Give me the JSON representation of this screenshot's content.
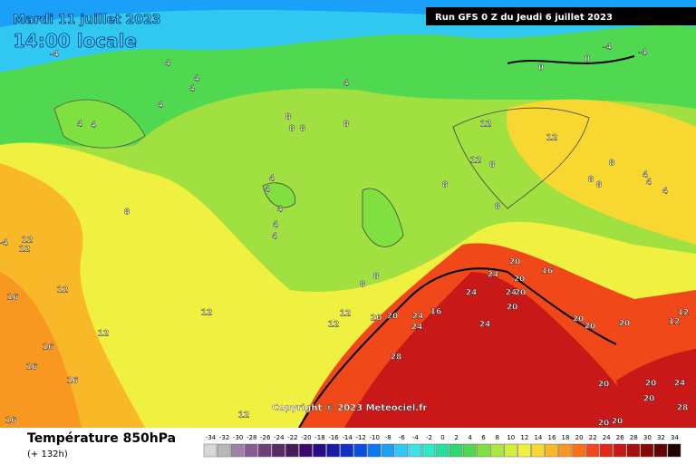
{
  "header": {
    "date": "Mardi 11 juillet 2023",
    "time": "14:00 locale",
    "run": "Run GFS 0 Z du Jeudi 6 juillet 2023"
  },
  "footer": {
    "title": "Température 850hPa",
    "lead": "(+ 132h)"
  },
  "copyright": "Copyright © 2023 Meteociel.fr",
  "legend": {
    "values": [
      -34,
      -32,
      -30,
      -28,
      -26,
      -24,
      -22,
      -20,
      -18,
      -16,
      -14,
      -12,
      -10,
      -8,
      -6,
      -4,
      -2,
      0,
      2,
      4,
      6,
      8,
      10,
      12,
      14,
      16,
      18,
      20,
      22,
      24,
      26,
      28,
      30,
      32,
      34
    ],
    "colors": [
      "#d8d8d8",
      "#b8b8b8",
      "#a080a8",
      "#8a5a96",
      "#70407e",
      "#5a2a68",
      "#4a1a58",
      "#3a0a6a",
      "#2a0a88",
      "#1a1aa8",
      "#1030c8",
      "#0a50e0",
      "#0a78f0",
      "#1aa0f8",
      "#30c8f8",
      "#40e0e8",
      "#30e8c8",
      "#28e0a0",
      "#30d870",
      "#50d850",
      "#80e040",
      "#a8e840",
      "#d0f040",
      "#f0f040",
      "#f8d830",
      "#f8b828",
      "#f89820",
      "#f87018",
      "#f04818",
      "#e02818",
      "#c81818",
      "#a81010",
      "#880808",
      "#600404",
      "#200000"
    ]
  },
  "contour_labels": [
    4,
    4,
    4,
    4,
    4,
    4,
    4,
    8,
    8,
    8,
    8,
    12,
    12,
    12,
    8,
    8,
    8,
    8,
    8,
    8,
    4,
    4,
    4,
    4,
    4,
    4,
    4,
    4,
    8,
    12,
    12,
    12,
    16,
    16,
    16,
    16,
    16,
    12,
    12,
    12,
    12,
    12,
    8,
    8,
    20,
    24,
    20,
    16,
    24,
    24,
    20,
    20,
    20,
    20,
    24,
    16,
    24,
    24,
    20,
    20,
    20,
    12,
    12,
    28,
    20,
    20,
    24,
    20,
    28,
    20,
    20,
    0,
    0,
    -4,
    -4,
    -4,
    -4
  ]
}
